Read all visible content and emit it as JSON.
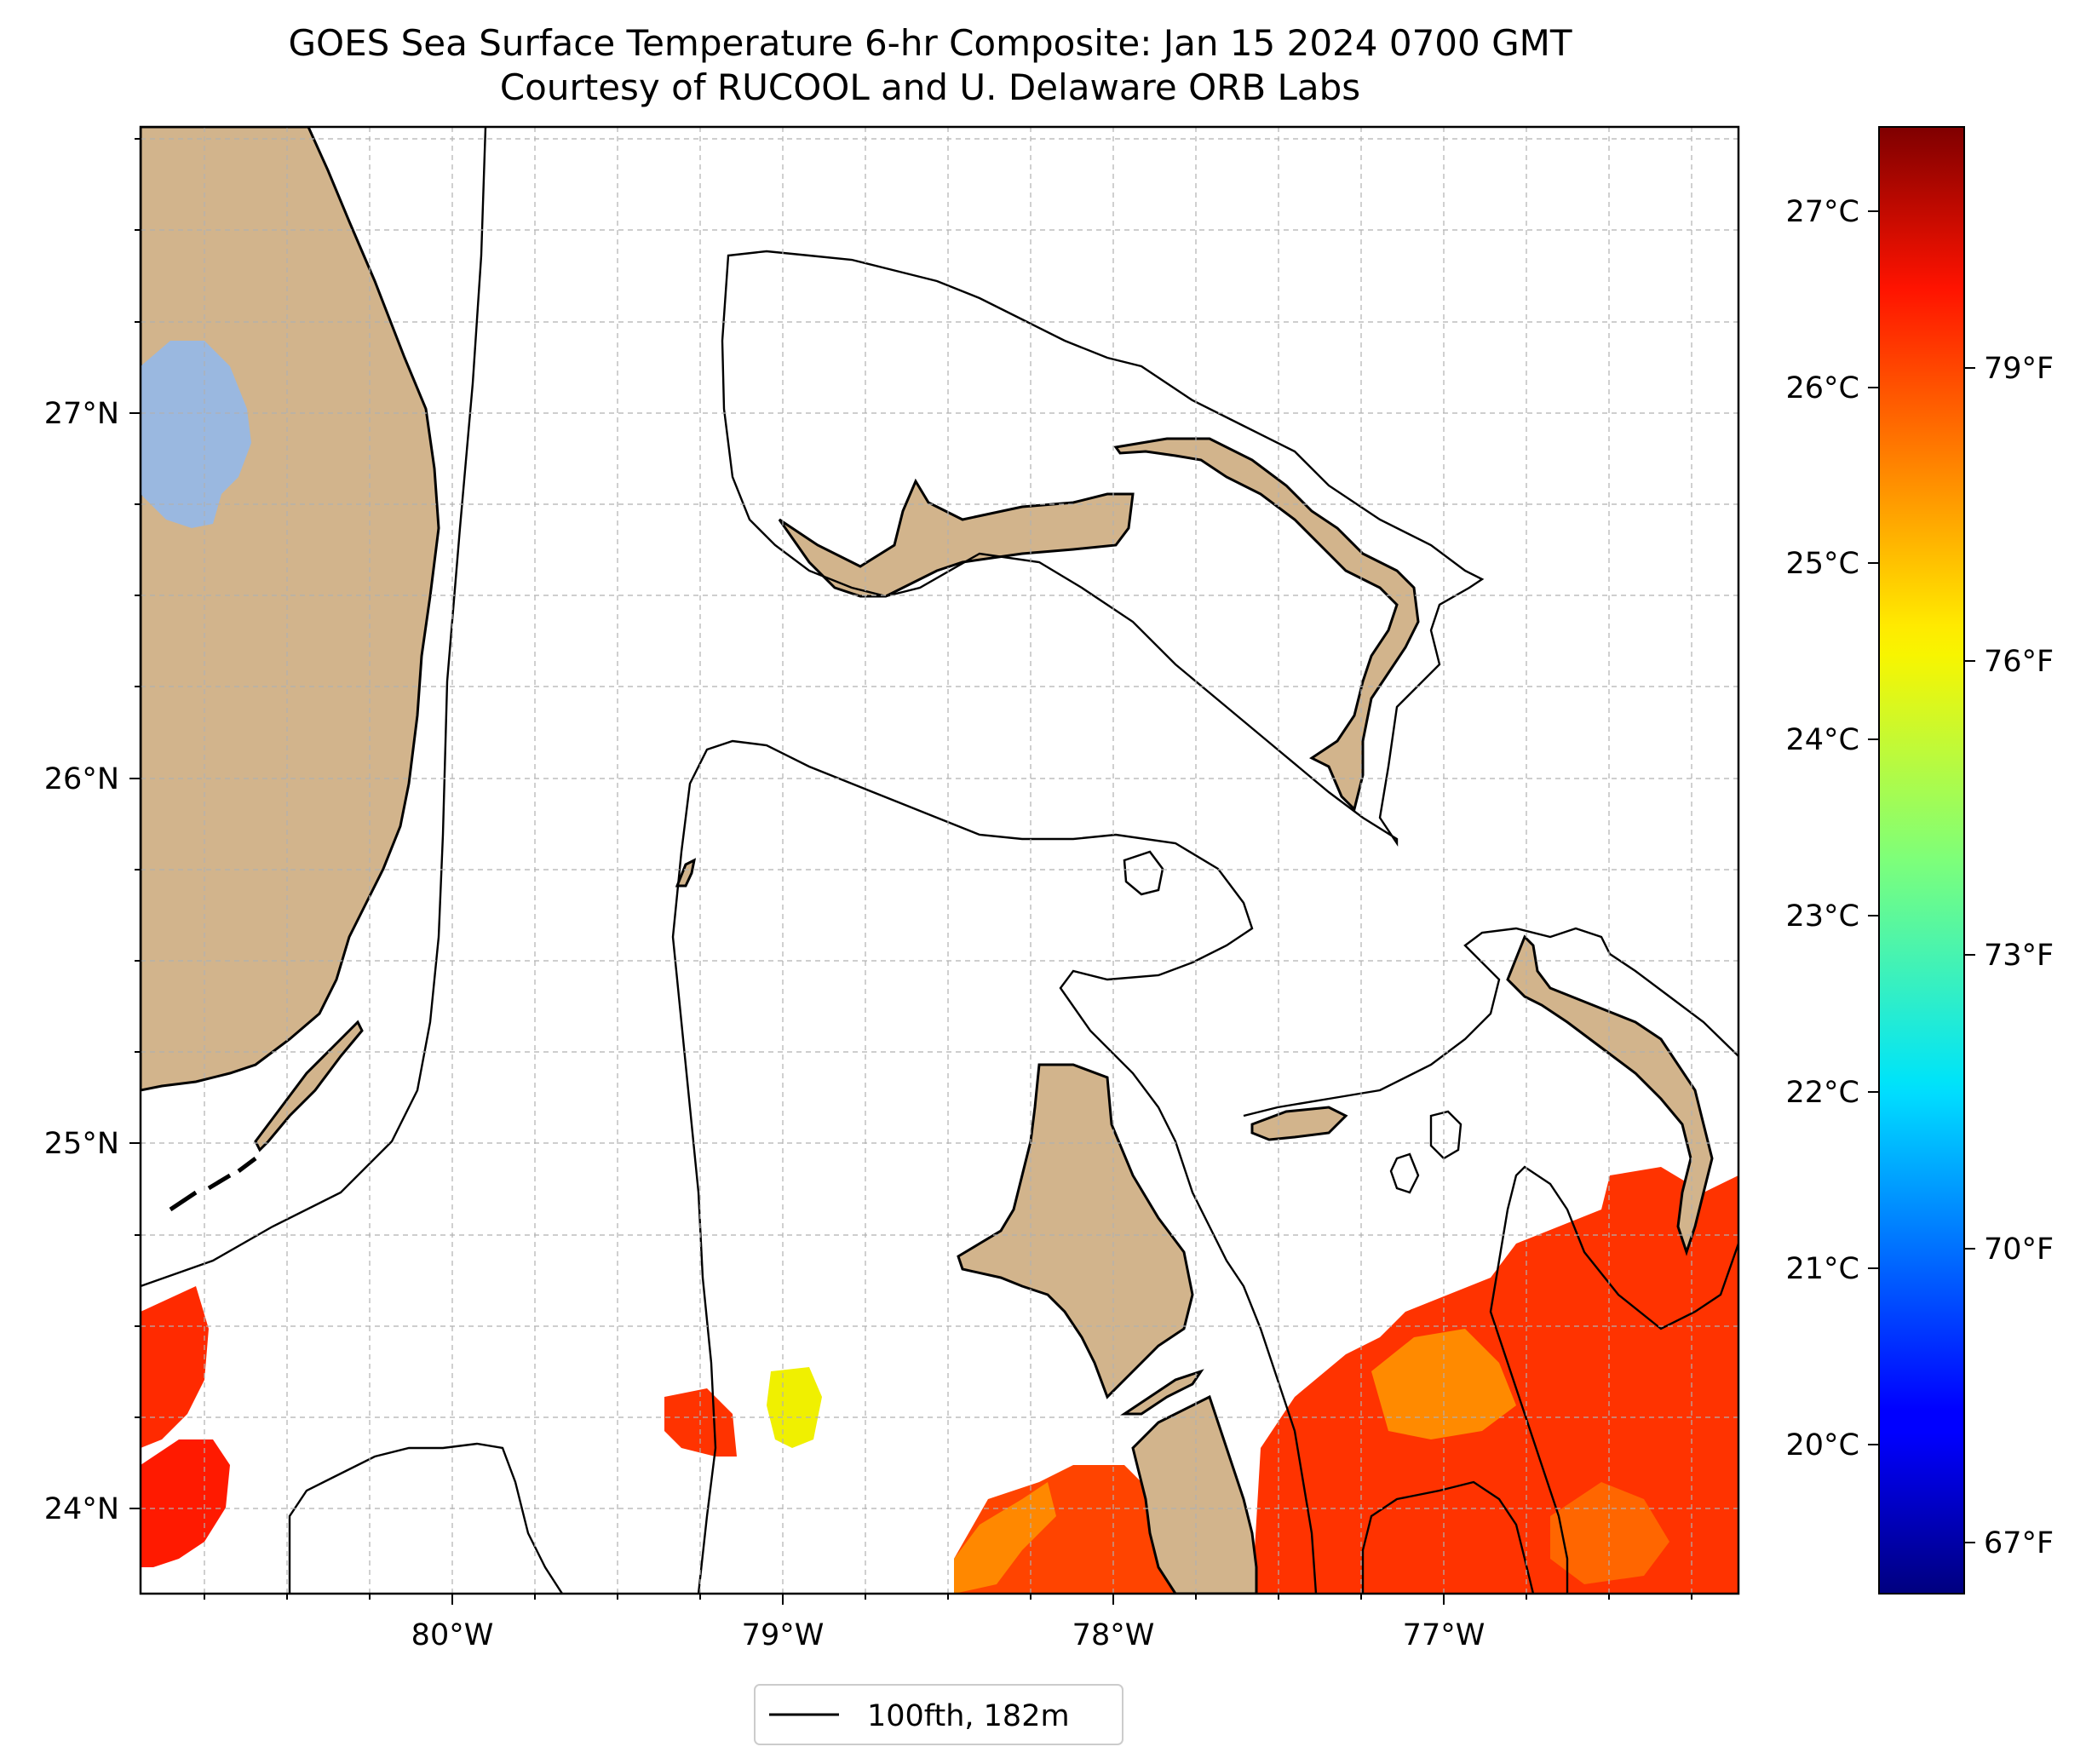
{
  "title": {
    "line1": "GOES Sea Surface Temperature 6-hr Composite: Jan 15 2024 0700 GMT",
    "line2": "Courtesy of RUCOOL and U. Delaware ORB Labs"
  },
  "map": {
    "lon_range": [
      -80.95,
      -76.1
    ],
    "lat_range": [
      23.75,
      27.8
    ],
    "lon_ticks": [
      -80,
      -79,
      -78,
      -77
    ],
    "lon_tick_labels": [
      "80°W",
      "79°W",
      "78°W",
      "77°W"
    ],
    "lat_ticks": [
      24,
      25,
      26,
      27
    ],
    "lat_tick_labels": [
      "24°N",
      "25°N",
      "26°N",
      "27°N"
    ],
    "gridlines": "dashed",
    "land_color": "#d2b48c",
    "lake_color": "#9ab8e0"
  },
  "colorbar": {
    "colormap": "jet",
    "range_c": [
      19.2,
      27.45
    ],
    "celsius_ticks": [
      20,
      21,
      22,
      23,
      24,
      25,
      26,
      27
    ],
    "celsius_labels": [
      "20°C",
      "21°C",
      "22°C",
      "23°C",
      "24°C",
      "25°C",
      "26°C",
      "27°C"
    ],
    "fahrenheit_ticks": [
      67,
      70,
      73,
      76,
      79
    ],
    "fahrenheit_labels": [
      "67°F",
      "70°F",
      "73°F",
      "76°F",
      "79°F"
    ]
  },
  "legend": {
    "label": "100fth, 182m",
    "line_color": "#000000"
  },
  "sst_patches": [
    {
      "region": "southwest-edge",
      "color": "#ff2a00"
    },
    {
      "region": "west-of-dry-tortugas",
      "color": "#ff1a00"
    },
    {
      "region": "small-patch-79.3W",
      "color": "#ff3300"
    },
    {
      "region": "small-patch-79W",
      "color": "#f0f000"
    },
    {
      "region": "south-andros",
      "color": "#ff4400"
    },
    {
      "region": "exuma-sound",
      "color": "#ff3300"
    }
  ]
}
